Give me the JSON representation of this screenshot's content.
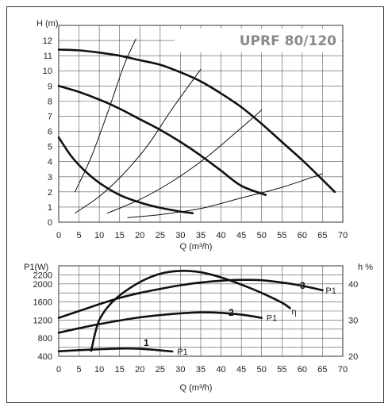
{
  "chart_data": [
    {
      "type": "line",
      "title": "UPRF 80/120",
      "xlabel": "Q (m³/h)",
      "ylabel": "H (m)",
      "xlim": [
        0,
        70
      ],
      "ylim": [
        0,
        13
      ],
      "xticks": [
        0,
        5,
        10,
        15,
        20,
        25,
        30,
        35,
        40,
        45,
        50,
        55,
        60,
        65,
        70
      ],
      "yticks": [
        0,
        1,
        2,
        3,
        4,
        5,
        6,
        7,
        8,
        9,
        10,
        11,
        12
      ],
      "grid": true,
      "series": [
        {
          "name": "",
          "x": [
            0,
            3,
            6,
            10,
            15,
            20,
            25,
            30,
            33
          ],
          "y": [
            5.6,
            4.4,
            3.5,
            2.6,
            1.8,
            1.3,
            0.95,
            0.7,
            0.6
          ]
        },
        {
          "name": "",
          "x": [
            0,
            5,
            10,
            15,
            20,
            25,
            30,
            35,
            40,
            45,
            51
          ],
          "y": [
            9.0,
            8.6,
            8.1,
            7.5,
            6.8,
            6.1,
            5.3,
            4.4,
            3.4,
            2.4,
            1.8
          ]
        },
        {
          "name": "",
          "x": [
            0,
            5,
            10,
            15,
            20,
            25,
            30,
            35,
            40,
            45,
            50,
            55,
            60,
            65,
            68
          ],
          "y": [
            11.4,
            11.35,
            11.2,
            11.0,
            10.7,
            10.4,
            9.9,
            9.3,
            8.5,
            7.6,
            6.5,
            5.3,
            4.1,
            2.8,
            2.0
          ]
        },
        {
          "name": "",
          "x": [
            4,
            8,
            12,
            16,
            19
          ],
          "y": [
            2.0,
            4.3,
            7.2,
            10.3,
            12.1
          ]
        },
        {
          "name": "",
          "x": [
            4,
            10,
            16,
            22,
            28,
            35
          ],
          "y": [
            0.6,
            1.7,
            3.2,
            5.1,
            7.5,
            10.1
          ]
        },
        {
          "name": "",
          "x": [
            12,
            20,
            28,
            36,
            44,
            50
          ],
          "y": [
            0.6,
            1.5,
            2.7,
            4.2,
            6.0,
            7.4
          ]
        },
        {
          "name": "",
          "x": [
            17,
            25,
            35,
            45,
            55,
            65
          ],
          "y": [
            0.3,
            0.5,
            0.9,
            1.6,
            2.3,
            3.2
          ]
        }
      ]
    },
    {
      "type": "line",
      "title": "",
      "xlabel": "Q (m³/h)",
      "ylabel": "P1(W)",
      "y2label": "h %",
      "xlim": [
        0,
        70
      ],
      "ylim": [
        400,
        2400
      ],
      "y2lim": [
        20,
        45
      ],
      "xticks": [
        0,
        5,
        10,
        15,
        20,
        25,
        30,
        35,
        40,
        45,
        50,
        55,
        60,
        65,
        70
      ],
      "yticks": [
        400,
        800,
        1200,
        1600,
        2000,
        2200
      ],
      "y2ticks": [
        20,
        30,
        40
      ],
      "grid": true,
      "series": [
        {
          "name": "P1",
          "number": "1",
          "axis": "left",
          "x": [
            0,
            5,
            10,
            15,
            20,
            25,
            28
          ],
          "y": [
            510,
            535,
            555,
            570,
            565,
            530,
            505
          ]
        },
        {
          "name": "P1",
          "number": "2",
          "axis": "left",
          "x": [
            0,
            5,
            10,
            15,
            20,
            25,
            30,
            35,
            40,
            45,
            50
          ],
          "y": [
            920,
            1020,
            1110,
            1190,
            1260,
            1310,
            1350,
            1370,
            1360,
            1320,
            1250
          ]
        },
        {
          "name": "P1",
          "number": "3",
          "axis": "left",
          "x": [
            0,
            5,
            10,
            15,
            20,
            25,
            30,
            35,
            40,
            45,
            50,
            55,
            60,
            65
          ],
          "y": [
            1250,
            1400,
            1550,
            1690,
            1800,
            1890,
            1970,
            2030,
            2070,
            2090,
            2080,
            2030,
            1960,
            1860
          ]
        },
        {
          "name": "η",
          "axis": "right",
          "x": [
            8,
            9,
            10,
            12,
            15,
            20,
            25,
            30,
            35,
            40,
            45,
            50,
            55,
            57
          ],
          "y": [
            21.5,
            26.5,
            30.0,
            33.5,
            36.8,
            40.5,
            42.8,
            43.6,
            43.2,
            41.8,
            39.8,
            37.5,
            34.8,
            33.3
          ]
        }
      ]
    }
  ]
}
